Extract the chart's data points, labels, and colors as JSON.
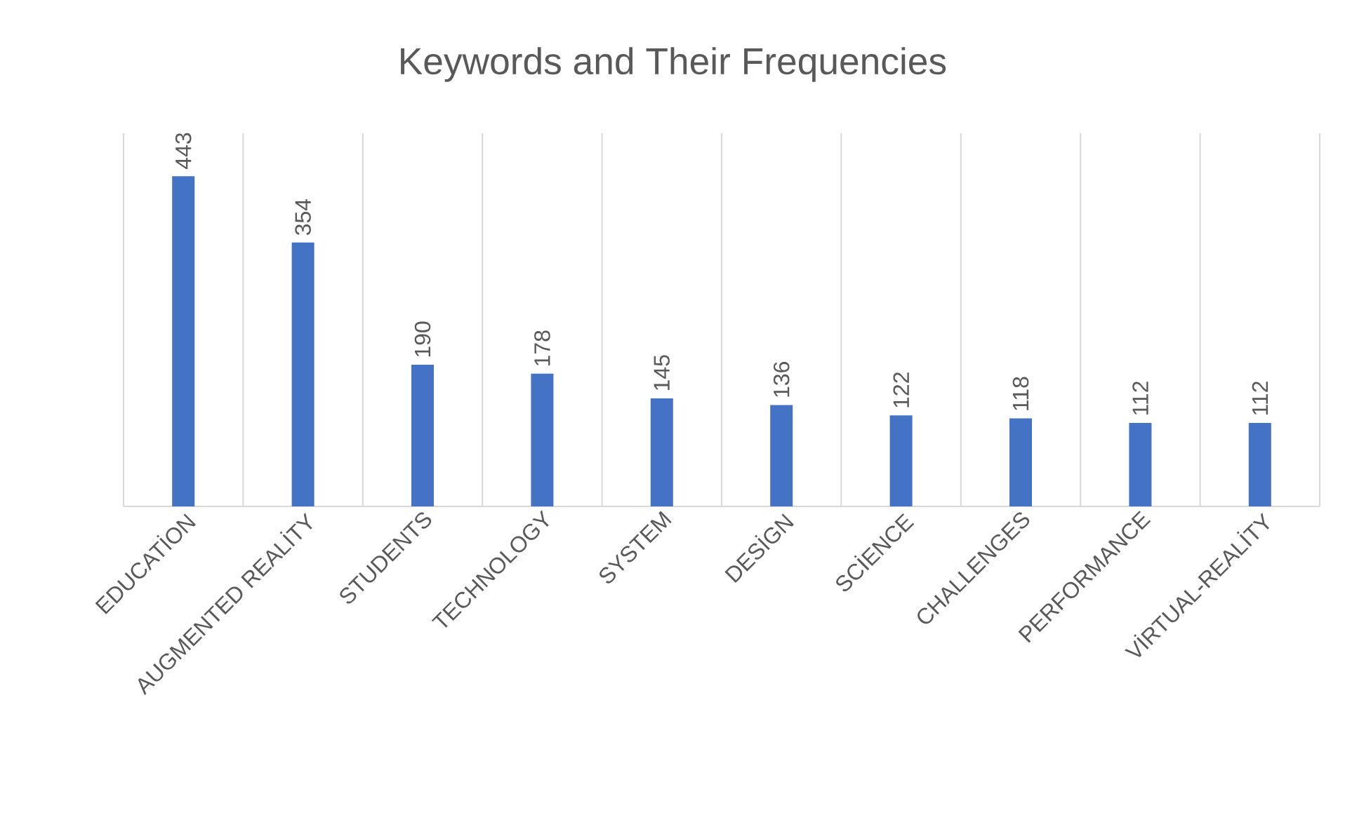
{
  "chart_data": {
    "type": "bar",
    "title": "Keywords and Their Frequencies",
    "categories": [
      "EDUCATİON",
      "AUGMENTED REALİTY",
      "STUDENTS",
      "TECHNOLOGY",
      "SYSTEM",
      "DESİGN",
      "SCİENCE",
      "CHALLENGES",
      "PERFORMANCE",
      "VİRTUAL-REALİTY"
    ],
    "values": [
      443,
      354,
      190,
      178,
      145,
      136,
      122,
      118,
      112,
      112
    ],
    "color": "#4472c4",
    "data_labels": true,
    "grid": "x"
  }
}
